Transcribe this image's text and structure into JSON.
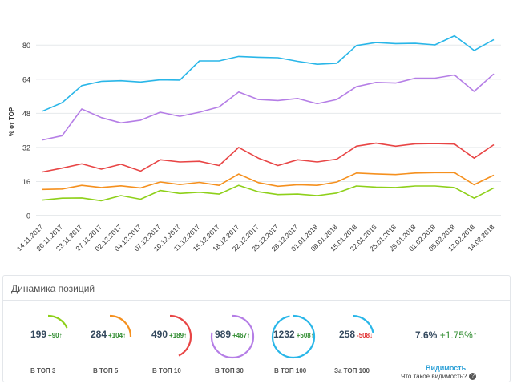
{
  "chart_data": {
    "type": "line",
    "ylabel": "% от ТОР",
    "ylim": [
      0,
      88
    ],
    "yticks": [
      0,
      16,
      32,
      48,
      64,
      80
    ],
    "grid": true,
    "x": [
      "14.11.2017",
      "20.11.2017",
      "23.11.2017",
      "27.11.2017",
      "02.12.2017",
      "04.12.2017",
      "07.12.2017",
      "10.12.2017",
      "11.12.2017",
      "15.12.2017",
      "18.12.2017",
      "22.12.2017",
      "25.12.2017",
      "28.12.2017",
      "01.01.2018",
      "08.01.2018",
      "15.01.2018",
      "22.01.2018",
      "25.01.2018",
      "29.01.2018",
      "01.02.2018",
      "05.02.2018",
      "12.02.2018",
      "14.02.2018"
    ],
    "series": [
      {
        "color": "#29b6e8",
        "values": [
          49,
          53,
          61,
          63,
          63.3,
          62.7,
          63.7,
          63.6,
          72.6,
          72.6,
          74.7,
          74.3,
          74.1,
          72.4,
          71,
          71.5,
          79.8,
          81.2,
          80.7,
          80.8,
          80.1,
          84.4,
          77.5,
          82.6
        ]
      },
      {
        "color": "#b57ee6",
        "values": [
          35.5,
          37.5,
          50,
          46,
          43.5,
          44.8,
          48.5,
          46.6,
          48.5,
          51,
          58,
          54.5,
          54,
          55,
          52.5,
          54.5,
          60.5,
          62.5,
          62.2,
          64.5,
          64.5,
          66,
          58.3,
          66.5
        ]
      },
      {
        "color": "#e84545",
        "values": [
          20.5,
          22.3,
          24.3,
          21.8,
          24.1,
          20.9,
          26.2,
          25.2,
          25.5,
          23.5,
          32,
          27,
          23.5,
          26.2,
          25.2,
          26.5,
          32.6,
          34,
          32.6,
          33.7,
          33.8,
          33.6,
          27,
          33.3
        ]
      },
      {
        "color": "#f5901e",
        "values": [
          12.3,
          12.5,
          14.2,
          13.2,
          14,
          13,
          15.8,
          14.6,
          15.6,
          14.2,
          19.5,
          15.5,
          13.8,
          14.5,
          14.2,
          15.8,
          20,
          19.6,
          19.3,
          20,
          20.2,
          20.2,
          14.5,
          19
        ]
      },
      {
        "color": "#8ed01a",
        "values": [
          7.3,
          8.2,
          8.3,
          7,
          9.4,
          7.7,
          11.8,
          10.4,
          11,
          10.1,
          14.2,
          11.2,
          9.9,
          10.1,
          9.4,
          10.6,
          13.9,
          13.4,
          13.2,
          13.9,
          13.9,
          13.2,
          8.2,
          13
        ]
      }
    ]
  },
  "positions_panel": {
    "title": "Динамика позиций",
    "gauges": [
      {
        "value": "199",
        "change": "+90",
        "arrow": "↑",
        "direction": "up",
        "label": "В ТОП 3",
        "color": "#8ed01a",
        "fill": 0.18
      },
      {
        "value": "284",
        "change": "+104",
        "arrow": "↑",
        "direction": "up",
        "label": "В ТОП 5",
        "color": "#f5901e",
        "fill": 0.25
      },
      {
        "value": "490",
        "change": "+189",
        "arrow": "↑",
        "direction": "up",
        "label": "В ТОП 10",
        "color": "#e84545",
        "fill": 0.43
      },
      {
        "value": "989",
        "change": "+467",
        "arrow": "↑",
        "direction": "up",
        "label": "В ТОП 30",
        "color": "#b57ee6",
        "fill": 0.78
      },
      {
        "value": "1232",
        "change": "+508",
        "arrow": "↑",
        "direction": "up",
        "label": "В ТОП 100",
        "color": "#29b6e8",
        "fill": 0.97
      },
      {
        "value": "258",
        "change": "-508",
        "arrow": "↓",
        "direction": "down",
        "label": "За ТОП 100",
        "color": "#29b6e8",
        "fill": 0.22
      }
    ],
    "visibility": {
      "value": "7.6%",
      "change": "+1.75%",
      "arrow": "↑",
      "link": "Видимость",
      "help": "Что такое видимость?",
      "help_icon": "question-circle-icon"
    }
  }
}
